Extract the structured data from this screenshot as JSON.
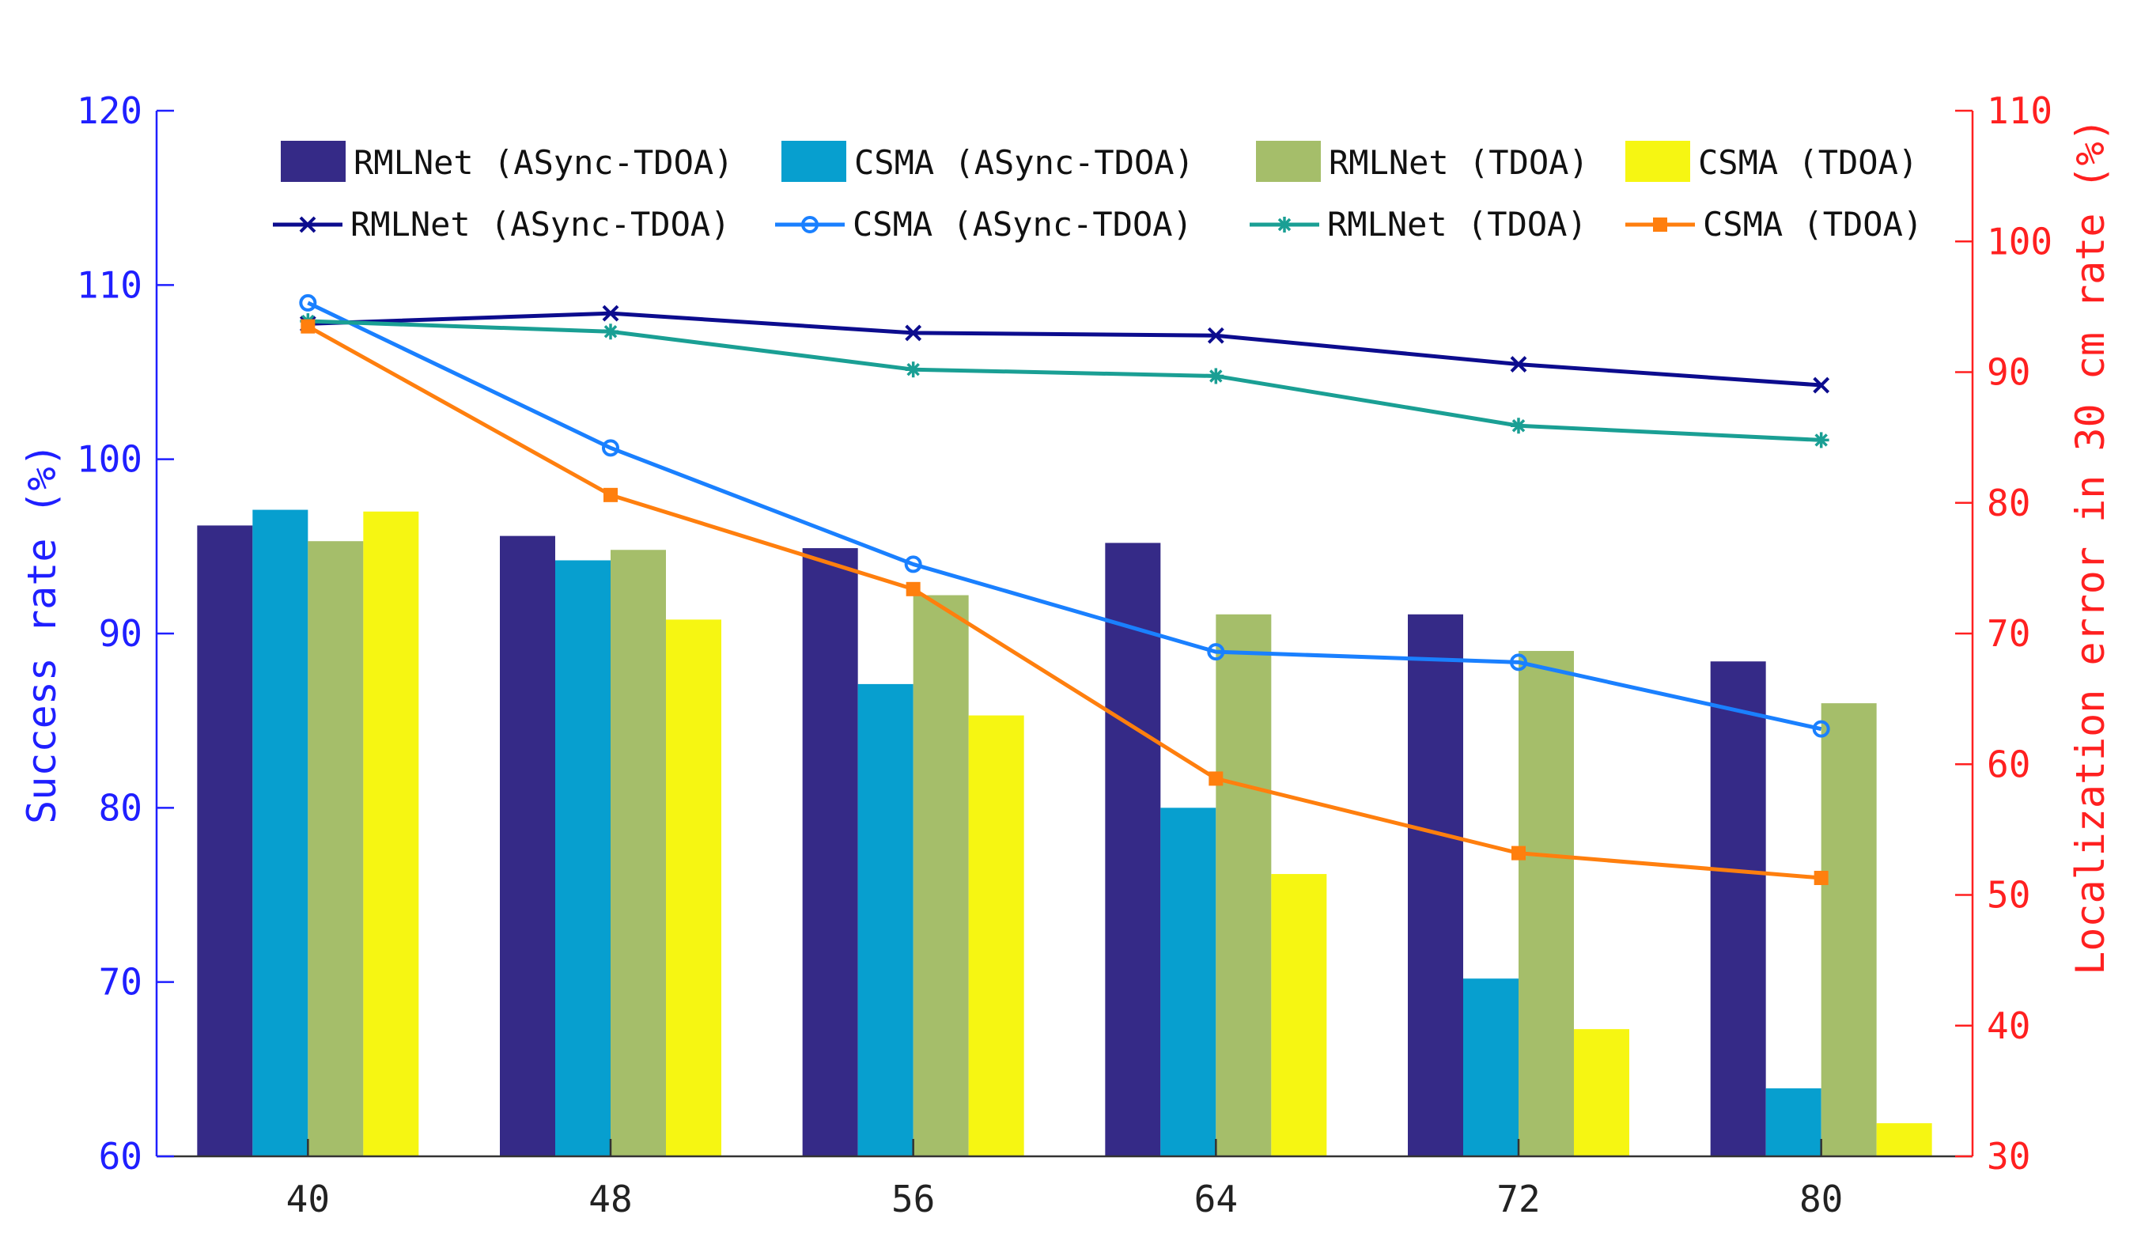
{
  "chart_data": {
    "type": "bar+line",
    "categories": [
      "40",
      "48",
      "56",
      "64",
      "72",
      "80"
    ],
    "left_axis": {
      "label": "Success rate (%)",
      "ylim": [
        60,
        120
      ],
      "ticks": [
        "60",
        "70",
        "80",
        "90",
        "100",
        "110",
        "120"
      ],
      "color": "#1f1fff"
    },
    "right_axis": {
      "label": "Localization error in 30 cm rate (%)",
      "ylim": [
        30,
        110
      ],
      "ticks": [
        "30",
        "40",
        "50",
        "60",
        "70",
        "80",
        "90",
        "100",
        "110"
      ],
      "color": "#ff2020"
    },
    "bar_series": [
      {
        "name": "RMLNet (ASync-TDOA)",
        "color": "#352a87",
        "values": [
          96.2,
          95.6,
          94.9,
          95.2,
          91.1,
          88.4
        ]
      },
      {
        "name": "CSMA (ASync-TDOA)",
        "color": "#079fcf",
        "values": [
          97.1,
          94.2,
          87.1,
          80.0,
          70.2,
          63.9
        ]
      },
      {
        "name": "RMLNet (TDOA)",
        "color": "#a5be6a",
        "values": [
          95.3,
          94.8,
          92.2,
          91.1,
          89.0,
          86.0
        ]
      },
      {
        "name": "CSMA (TDOA)",
        "color": "#f6f612",
        "values": [
          97.0,
          90.8,
          85.3,
          76.2,
          67.3,
          61.9
        ]
      }
    ],
    "line_series": [
      {
        "name": "RMLNet (ASync-TDOA)",
        "color": "#0c0c8e",
        "marker": "x",
        "values": [
          93.7,
          94.5,
          93.0,
          92.8,
          90.6,
          89.0
        ]
      },
      {
        "name": "CSMA (ASync-TDOA)",
        "color": "#1a80ff",
        "marker": "o",
        "values": [
          95.3,
          84.2,
          75.3,
          68.6,
          67.8,
          62.7
        ]
      },
      {
        "name": "RMLNet (TDOA)",
        "color": "#1a9f94",
        "marker": "*",
        "values": [
          93.9,
          93.1,
          90.2,
          89.7,
          85.9,
          84.8
        ]
      },
      {
        "name": "CSMA (TDOA)",
        "color": "#ff7f0e",
        "marker": "s",
        "values": [
          93.5,
          80.6,
          73.4,
          58.9,
          53.2,
          51.3
        ]
      }
    ],
    "legend_position": "top"
  }
}
